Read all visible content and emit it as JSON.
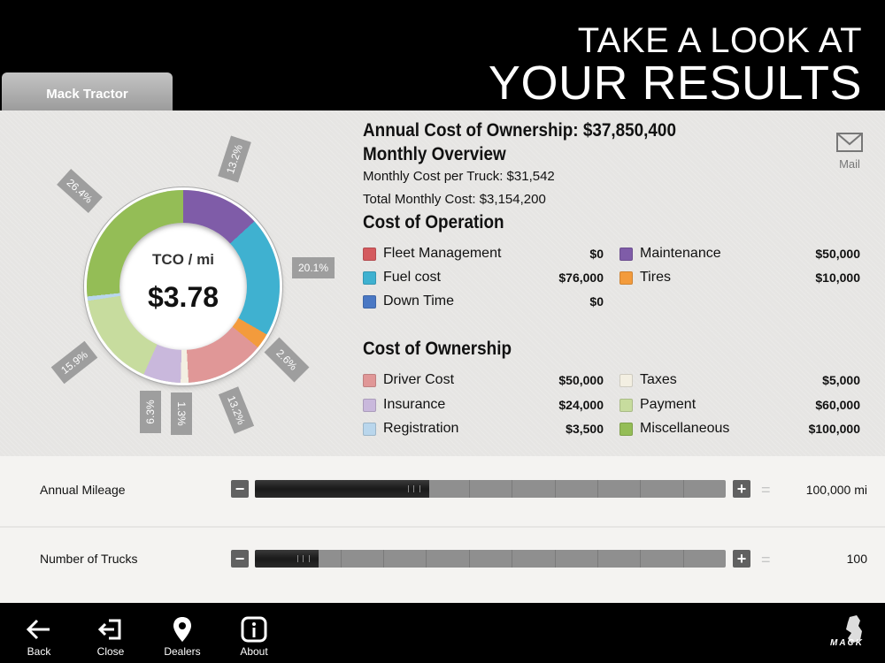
{
  "header": {
    "line1": "TAKE A LOOK AT",
    "line2": "YOUR RESULTS",
    "tab_label": "Mack Tractor"
  },
  "donut": {
    "center_label": "TCO / mi",
    "center_value": "$3.78",
    "percent_labels": [
      "13.2%",
      "20.1%",
      "2.6%",
      "13.2%",
      "1.3%",
      "6.3%",
      "15.9%",
      "26.4%"
    ]
  },
  "summary": {
    "annual_cost": "Annual Cost of Ownership: $37,850,400",
    "monthly_title": "Monthly Overview",
    "monthly_per_truck": "Monthly Cost per Truck: $31,542",
    "total_monthly": "Total Monthly Cost: $3,154,200",
    "operation_title": "Cost of Operation",
    "ownership_title": "Cost of Ownership"
  },
  "operation_items": [
    {
      "label": "Fleet Management",
      "value": "$0",
      "color": "#d45a5e"
    },
    {
      "label": "Fuel cost",
      "value": "$76,000",
      "color": "#3fb1d0"
    },
    {
      "label": "Down Time",
      "value": "$0",
      "color": "#4a78c4"
    },
    {
      "label": "Maintenance",
      "value": "$50,000",
      "color": "#7f5ca8"
    },
    {
      "label": "Tires",
      "value": "$10,000",
      "color": "#f39b3c"
    }
  ],
  "ownership_items": [
    {
      "label": "Driver Cost",
      "value": "$50,000",
      "color": "#e09797"
    },
    {
      "label": "Insurance",
      "value": "$24,000",
      "color": "#c9b8dc"
    },
    {
      "label": "Registration",
      "value": "$3,500",
      "color": "#b9d6ec"
    },
    {
      "label": "Taxes",
      "value": "$5,000",
      "color": "#f3efe2"
    },
    {
      "label": "Payment",
      "value": "$60,000",
      "color": "#c7dc9e"
    },
    {
      "label": "Miscellaneous",
      "value": "$100,000",
      "color": "#94bd56"
    }
  ],
  "mail": {
    "label": "Mail",
    "icon": "mail-icon"
  },
  "sliders": [
    {
      "label": "Annual Mileage",
      "value": "100,000 mi",
      "fill_fraction": 0.37
    },
    {
      "label": "Number of Trucks",
      "value": "100",
      "fill_fraction": 0.135
    }
  ],
  "slider_buttons": {
    "minus": "−",
    "plus": "+",
    "equals": "="
  },
  "footer": {
    "items": [
      {
        "label": "Back",
        "icon": "back-arrow-icon"
      },
      {
        "label": "Close",
        "icon": "close-exit-icon"
      },
      {
        "label": "Dealers",
        "icon": "location-pin-icon"
      },
      {
        "label": "About",
        "icon": "info-icon"
      }
    ],
    "logo": "MACK"
  }
}
